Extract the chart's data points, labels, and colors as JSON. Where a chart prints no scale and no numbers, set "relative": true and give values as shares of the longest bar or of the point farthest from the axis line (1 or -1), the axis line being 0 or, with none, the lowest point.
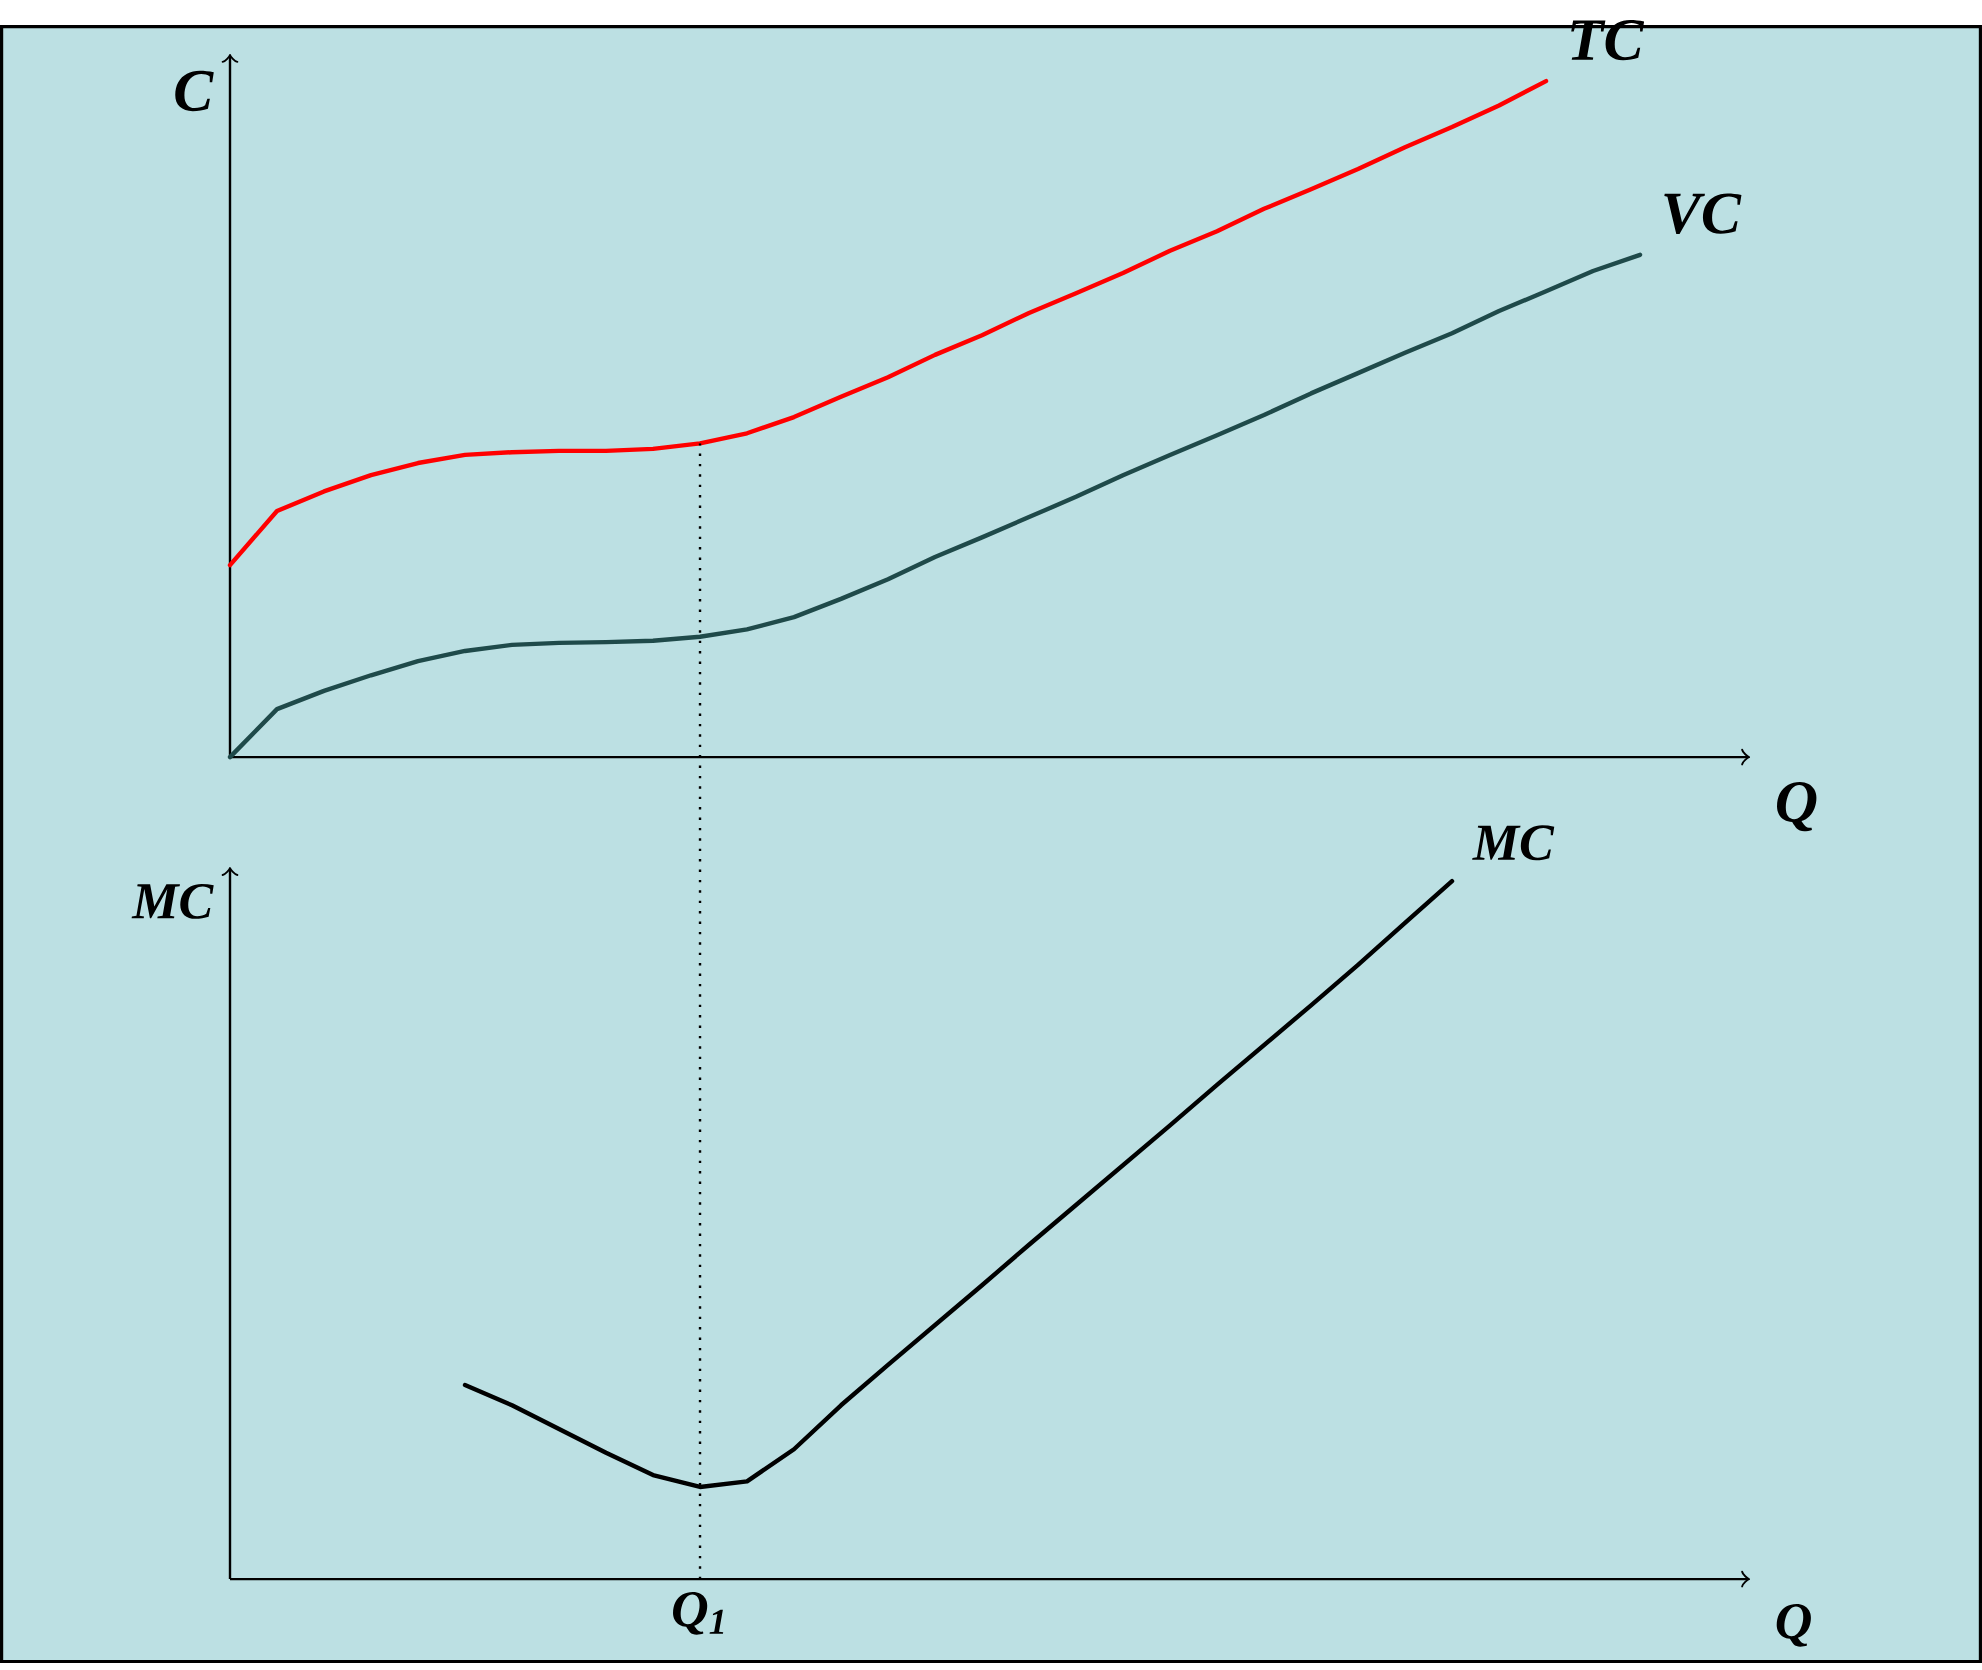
{
  "chart_data": [
    {
      "type": "line",
      "relative": true,
      "ylabel": "C",
      "xlabel": "Q",
      "categories": [
        null,
        null,
        null,
        null,
        null,
        null,
        null,
        null,
        null,
        null,
        null,
        null,
        null,
        null,
        null,
        null,
        null,
        null,
        null,
        null,
        null,
        null,
        null,
        null,
        null,
        null,
        null,
        null,
        null,
        null,
        null,
        null,
        null
      ],
      "series": [
        {
          "name": "TC",
          "color": "#ff0000",
          "values": [
            0.284,
            0.364,
            0.393,
            0.417,
            0.435,
            0.447,
            0.451,
            0.453,
            0.453,
            0.456,
            0.464,
            0.479,
            0.503,
            0.533,
            0.562,
            0.595,
            0.624,
            0.657,
            0.686,
            0.716,
            0.749,
            0.778,
            0.811,
            0.84,
            0.87,
            0.902,
            0.932,
            0.964,
            1.0,
            null,
            null,
            null,
            null
          ]
        },
        {
          "name": "VC",
          "color": "#1f4a4a",
          "values": [
            0,
            0.071,
            0.098,
            0.121,
            0.142,
            0.157,
            0.166,
            0.169,
            0.17,
            0.172,
            0.178,
            0.189,
            0.207,
            0.234,
            0.263,
            0.296,
            0.325,
            0.355,
            0.385,
            0.417,
            0.447,
            0.476,
            0.506,
            0.538,
            0.568,
            0.598,
            0.627,
            0.66,
            0.689,
            0.719,
            0.743,
            null,
            null
          ]
        }
      ]
    },
    {
      "type": "line",
      "relative": true,
      "ylabel": "MC",
      "xlabel": "Q",
      "categories": [
        null,
        null,
        null,
        null,
        null,
        null,
        null,
        null,
        null,
        null,
        null,
        null,
        null,
        null,
        null,
        null,
        null,
        null,
        null,
        null,
        null,
        null,
        null,
        null,
        null,
        null,
        null,
        null,
        null,
        null,
        null,
        null,
        null
      ],
      "series": [
        {
          "name": "MC",
          "color": "#000000",
          "values": [
            null,
            null,
            null,
            null,
            null,
            0.278,
            0.249,
            0.215,
            0.181,
            0.149,
            0.132,
            0.14,
            0.186,
            0.249,
            0.307,
            0.364,
            0.421,
            0.479,
            0.536,
            0.593,
            0.65,
            0.708,
            0.765,
            0.822,
            0.88,
            0.94,
            1.0,
            null,
            null,
            null,
            null,
            null,
            null
          ]
        }
      ],
      "annotations": [
        "Q$_{1}$"
      ]
    }
  ]
}
